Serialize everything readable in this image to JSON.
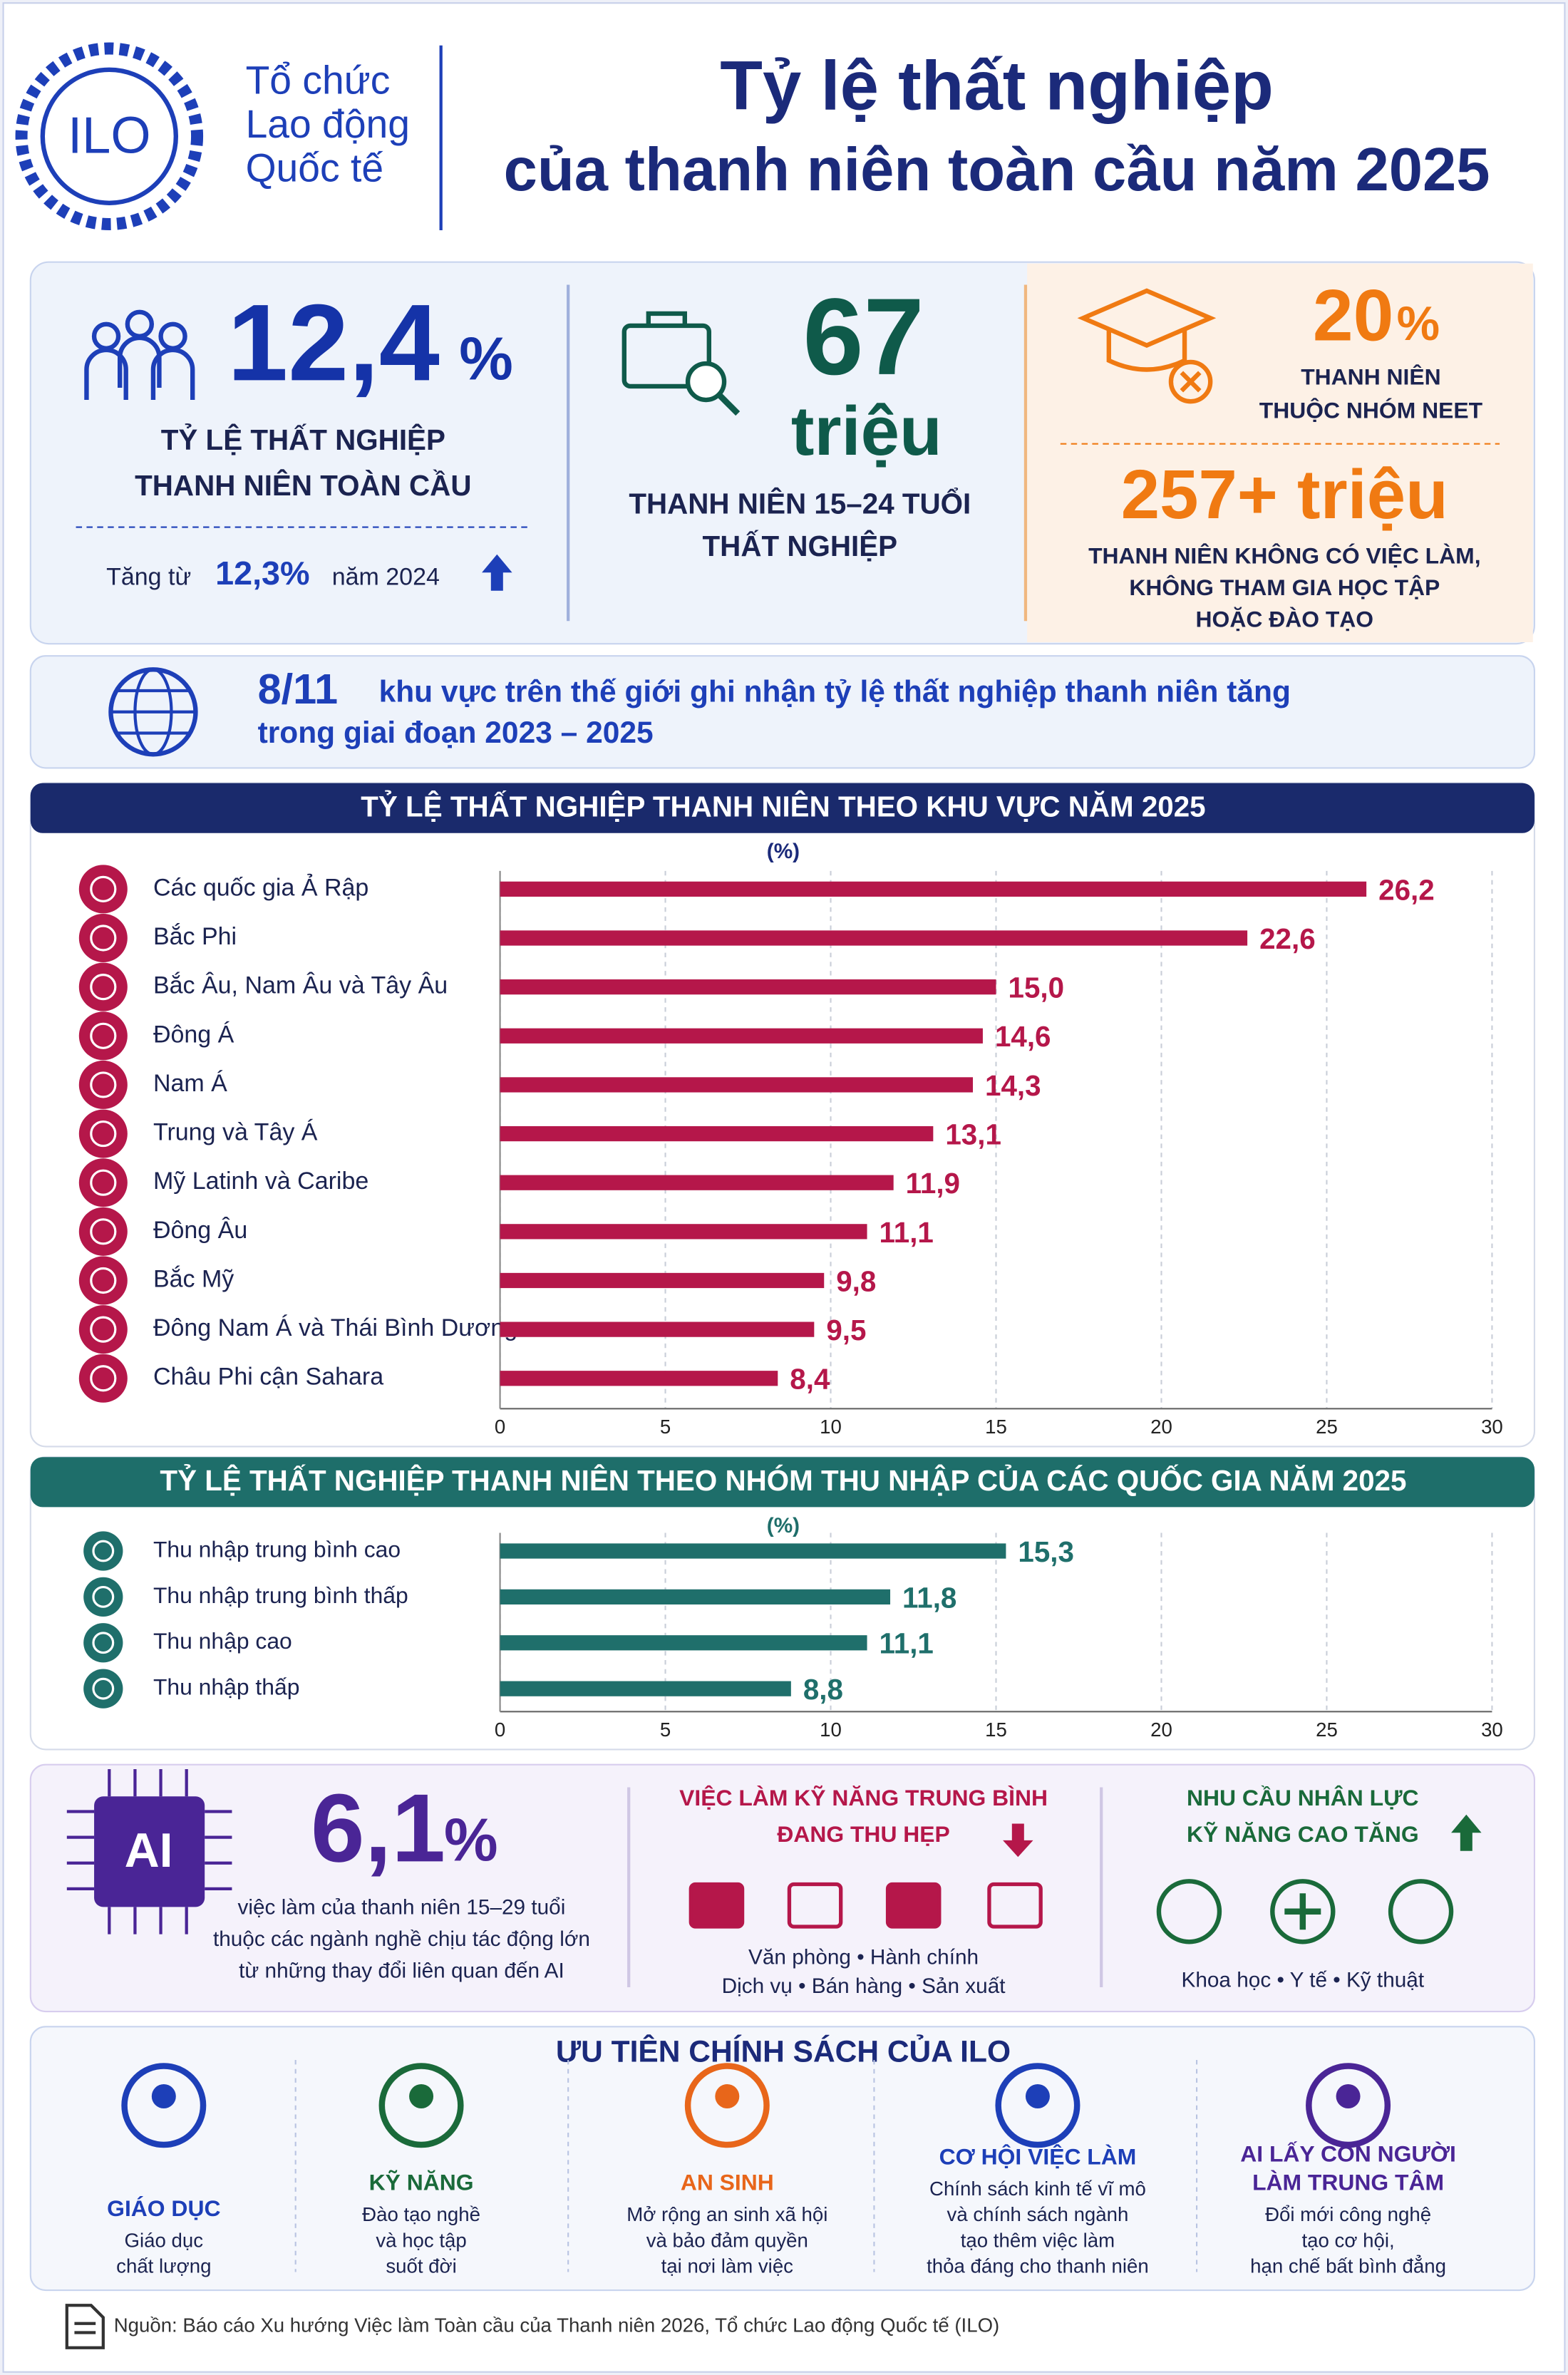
{
  "header": {
    "logo": "ILO",
    "org_lines": [
      "Tổ chức",
      "Lao động",
      "Quốc tế"
    ],
    "title_lines": [
      "Tỷ lệ thất nghiệp",
      "của thanh niên toàn cầu năm 2025"
    ]
  },
  "stats": {
    "youth_rate": {
      "value": "12,4",
      "unit": "%",
      "label_lines": [
        "TỶ LỆ THẤT NGHIỆP",
        "THANH NIÊN TOÀN CẦU"
      ],
      "change": {
        "prefix": "Tăng từ",
        "value": "12,3%",
        "suffix": "năm 2024"
      }
    },
    "unemployed": {
      "value": "67",
      "unit": "triệu",
      "label_lines": [
        "THANH NIÊN 15–24 TUỔI",
        "THẤT NGHIỆP"
      ]
    },
    "neet_share": {
      "value": "20",
      "unit": "%",
      "label_lines": [
        "THANH NIÊN",
        "THUỘC NHÓM NEET"
      ]
    },
    "neet_count": {
      "value": "257+ triệu",
      "label_lines": [
        "THANH NIÊN KHÔNG CÓ VIỆC LÀM,",
        "KHÔNG THAM GIA HỌC TẬP",
        "HOẶC ĐÀO TẠO"
      ]
    }
  },
  "regions_note": {
    "value": "8/11",
    "text_lines": [
      "khu vực trên thế giới ghi nhận tỷ lệ thất nghiệp thanh niên tăng",
      "trong giai đoạn 2023 – 2025"
    ]
  },
  "chart_data": [
    {
      "type": "bar",
      "orientation": "horizontal",
      "title": "TỶ LỆ THẤT NGHIỆP THANH NIÊN THEO KHU VỰC NĂM 2025",
      "unit": "(%)",
      "categories": [
        "Các quốc gia Ả Rập",
        "Bắc Phi",
        "Bắc Âu, Nam Âu và Tây Âu",
        "Đông Á",
        "Nam Á",
        "Trung và Tây Á",
        "Mỹ Latinh và Caribe",
        "Đông Âu",
        "Bắc Mỹ",
        "Đông Nam Á và Thái Bình Dương",
        "Châu Phi cận Sahara"
      ],
      "values": [
        26.2,
        22.6,
        15.0,
        14.6,
        14.3,
        13.1,
        11.9,
        11.1,
        9.8,
        9.5,
        8.4
      ],
      "value_labels": [
        "26,2",
        "22,6",
        "15,0",
        "14,6",
        "14,3",
        "13,1",
        "11,9",
        "11,1",
        "9,8",
        "9,5",
        "8,4"
      ],
      "color": "#b5174a",
      "xlim": [
        0,
        30
      ],
      "xticks": [
        0,
        5,
        10,
        15,
        20,
        25,
        30
      ],
      "grid": true
    },
    {
      "type": "bar",
      "orientation": "horizontal",
      "title": "TỶ LỆ THẤT NGHIỆP THANH NIÊN THEO NHÓM THU NHẬP CỦA CÁC QUỐC GIA NĂM 2025",
      "unit": "(%)",
      "categories": [
        "Thu nhập trung bình cao",
        "Thu nhập trung bình thấp",
        "Thu nhập cao",
        "Thu nhập thấp"
      ],
      "values": [
        15.3,
        11.8,
        11.1,
        8.8
      ],
      "value_labels": [
        "15,3",
        "11,8",
        "11,1",
        "8,8"
      ],
      "color": "#1f6f6b",
      "xlim": [
        0,
        30
      ],
      "xticks": [
        0,
        5,
        10,
        15,
        20,
        25,
        30
      ],
      "grid": true
    }
  ],
  "ai_impact": {
    "icon_label": "AI",
    "value": "6,1",
    "unit": "%",
    "text_lines": [
      "việc làm của thanh niên 15–29 tuổi",
      "thuộc các ngành nghề chịu tác động lớn",
      "từ những thay đổi liên quan đến AI"
    ],
    "mid_skill": {
      "title_lines": [
        "VIỆC LÀM KỸ NĂNG TRUNG BÌNH",
        "ĐANG THU HẸP"
      ],
      "item_lines": [
        "Văn phòng • Hành chính",
        "Dịch vụ • Bán hàng • Sản xuất"
      ]
    },
    "high_skill": {
      "title_lines": [
        "NHU CẦU NHÂN LỰC",
        "KỸ NĂNG CAO TĂNG"
      ],
      "item_lines": [
        "Khoa học • Y tế • Kỹ thuật"
      ]
    }
  },
  "policy": {
    "title": "ƯU TIÊN CHÍNH SÁCH CỦA ILO",
    "items": [
      {
        "title_lines": [
          "GIÁO DỤC"
        ],
        "text_lines": [
          "Giáo dục",
          "chất lượng"
        ]
      },
      {
        "title_lines": [
          "KỸ NĂNG"
        ],
        "text_lines": [
          "Đào tạo nghề",
          "và học tập",
          "suốt đời"
        ]
      },
      {
        "title_lines": [
          "AN SINH"
        ],
        "text_lines": [
          "Mở rộng an sinh xã hội",
          "và bảo đảm quyền",
          "tại nơi làm việc"
        ]
      },
      {
        "title_lines": [
          "CƠ HỘI VIỆC LÀM"
        ],
        "text_lines": [
          "Chính sách kinh tế vĩ mô",
          "và chính sách ngành",
          "tạo thêm việc làm",
          "thỏa đáng cho thanh niên"
        ]
      },
      {
        "title_lines": [
          "AI LẤY CON NGƯỜI",
          "LÀM TRUNG TÂM"
        ],
        "text_lines": [
          "Đổi mới công nghệ",
          "tạo cơ hội,",
          "hạn chế bất bình đẳng"
        ]
      }
    ]
  },
  "source": "Nguồn: Báo cáo Xu hướng Việc làm Toàn cầu của Thanh niên 2026, Tổ chức Lao động Quốc tế (ILO)"
}
